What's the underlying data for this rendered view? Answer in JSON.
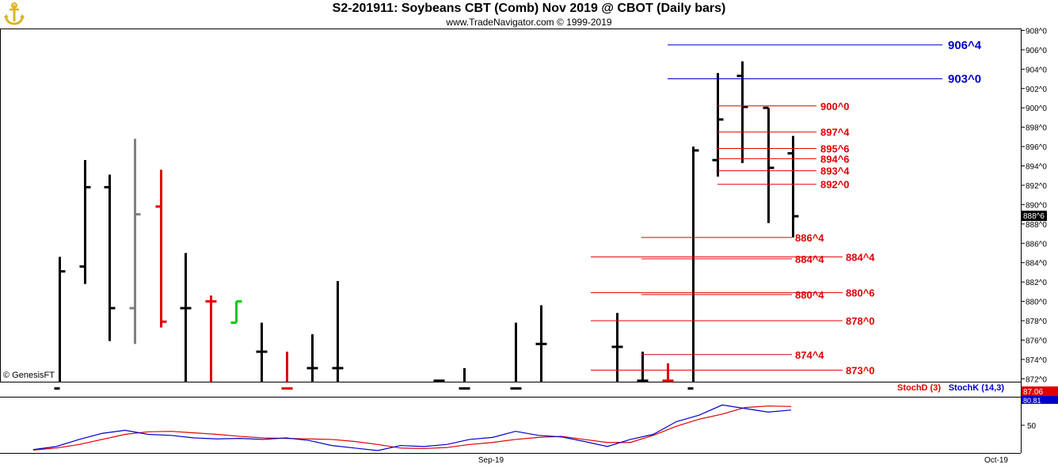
{
  "header": {
    "title": "S2-201911:  Soybeans CBT (Comb) Nov 2019 @ CBOT  (Daily bars)",
    "subtitle": "www.TradeNavigator.com © 1999-2019",
    "logo_icon": "anchor-logo-icon"
  },
  "watermark": "© GenesisFT",
  "colors": {
    "up_bar": "#000000",
    "gray_bar": "#808080",
    "red_bar": "#e00000",
    "green_bar": "#00cc00",
    "blue_level": "#0000cc",
    "red_level": "#e00000",
    "stoch_d": "#e00000",
    "stoch_k": "#0000cc"
  },
  "chart_data": [
    {
      "type": "ohlc",
      "title": "S2-201911:  Soybeans CBT (Comb) Nov 2019 @ CBOT  (Daily bars)",
      "price_axis": {
        "ticks": [
          "872^0",
          "874^0",
          "876^0",
          "878^0",
          "880^0",
          "882^0",
          "884^0",
          "886^0",
          "888^0",
          "890^0",
          "892^0",
          "894^0",
          "896^0",
          "898^0",
          "900^0",
          "902^0",
          "904^0",
          "906^0",
          "908^0"
        ],
        "range": [
          871.7,
          908.2
        ],
        "last_price_label": "888^6"
      },
      "x_axis": {
        "ticks": [
          "Sep-19",
          "Oct-19"
        ]
      },
      "bars": [
        {
          "high": 884.6,
          "low": 871.0,
          "open": 871.0,
          "close": 883.1,
          "color": "up_bar"
        },
        {
          "high": 894.6,
          "low": 881.8,
          "open": 883.6,
          "close": 891.8,
          "color": "up_bar"
        },
        {
          "high": 893.1,
          "low": 875.9,
          "open": 891.8,
          "close": 879.3,
          "color": "up_bar"
        },
        {
          "high": 896.8,
          "low": 875.6,
          "open": 879.3,
          "close": 889.0,
          "color": "gray_bar"
        },
        {
          "high": 893.6,
          "low": 877.3,
          "open": 889.8,
          "close": 877.9,
          "color": "red_bar"
        },
        {
          "high": 885.0,
          "low": 871.0,
          "open": 879.3,
          "close": 879.3,
          "color": "up_bar"
        },
        {
          "high": 880.6,
          "low": 871.0,
          "open": 880.0,
          "close": 880.0,
          "color": "red_bar"
        },
        {
          "high": 880.0,
          "low": 877.8,
          "open": 877.8,
          "close": 880.0,
          "color": "green_bar"
        },
        {
          "high": 877.8,
          "low": 871.0,
          "open": 874.8,
          "close": 874.8,
          "color": "up_bar"
        },
        {
          "high": 874.8,
          "low": 871.0,
          "open": 871.0,
          "close": 871.0,
          "color": "red_bar"
        },
        {
          "high": 876.6,
          "low": 871.0,
          "open": 873.1,
          "close": 873.1,
          "color": "up_bar"
        },
        {
          "high": 882.1,
          "low": 871.0,
          "open": 873.1,
          "close": 873.1,
          "color": "up_bar"
        },
        {
          "high": 871.8,
          "low": 871.0,
          "open": 871.8,
          "close": 871.8,
          "color": "up_bar"
        },
        {
          "high": 873.1,
          "low": 871.0,
          "open": 871.0,
          "close": 871.0,
          "color": "up_bar"
        },
        {
          "high": 877.8,
          "low": 871.0,
          "open": 871.0,
          "close": 871.0,
          "color": "up_bar"
        },
        {
          "high": 879.6,
          "low": 871.0,
          "open": 875.6,
          "close": 875.6,
          "color": "up_bar"
        },
        {
          "high": 878.8,
          "low": 871.0,
          "open": 875.3,
          "close": 875.3,
          "color": "up_bar"
        },
        {
          "high": 874.8,
          "low": 871.8,
          "open": 871.8,
          "close": 871.8,
          "color": "up_bar"
        },
        {
          "high": 873.6,
          "low": 871.8,
          "open": 871.8,
          "close": 871.8,
          "color": "red_bar"
        },
        {
          "high": 896.0,
          "low": 871.0,
          "open": 871.0,
          "close": 895.6,
          "color": "up_bar"
        },
        {
          "high": 903.6,
          "low": 892.9,
          "open": 894.6,
          "close": 898.8,
          "color": "up_bar"
        },
        {
          "high": 904.8,
          "low": 894.3,
          "open": 903.3,
          "close": 900.1,
          "color": "up_bar"
        },
        {
          "high": 900.0,
          "low": 888.1,
          "open": 900.0,
          "close": 893.8,
          "color": "up_bar"
        },
        {
          "high": 897.1,
          "low": 886.6,
          "open": 895.3,
          "close": 888.8,
          "color": "up_bar"
        }
      ],
      "levels": [
        {
          "label": "906^4",
          "value": 906.5,
          "color": "blue_level"
        },
        {
          "label": "903^0",
          "value": 903.0,
          "color": "blue_level"
        },
        {
          "label": "900^0",
          "value": 900.2,
          "color": "red_level"
        },
        {
          "label": "897^4",
          "value": 897.5,
          "color": "red_level"
        },
        {
          "label": "895^6",
          "value": 895.8,
          "color": "red_level"
        },
        {
          "label": "894^6",
          "value": 894.75,
          "color": "red_level"
        },
        {
          "label": "893^4",
          "value": 893.5,
          "color": "red_level"
        },
        {
          "label": "892^0",
          "value": 892.1,
          "color": "red_level"
        },
        {
          "label": "886^4",
          "value": 886.6,
          "color": "red_level"
        },
        {
          "label": "884^4",
          "value": 884.4,
          "color": "red_level"
        },
        {
          "label": "884^4",
          "value": 884.6,
          "color": "red_level"
        },
        {
          "label": "880^4",
          "value": 880.7,
          "color": "red_level"
        },
        {
          "label": "880^6",
          "value": 880.9,
          "color": "red_level"
        },
        {
          "label": "878^0",
          "value": 878.0,
          "color": "red_level"
        },
        {
          "label": "874^4",
          "value": 874.5,
          "color": "red_level"
        },
        {
          "label": "873^0",
          "value": 872.9,
          "color": "red_level"
        }
      ]
    },
    {
      "type": "line",
      "title": "",
      "legend": [
        "StochD (3)",
        "StochK (14,3)"
      ],
      "y_axis": {
        "ticks": [
          "50"
        ],
        "range": [
          0,
          100
        ]
      },
      "last_values": {
        "stoch_d": "87.06",
        "stoch_k": "80.81"
      },
      "series": [
        {
          "name": "StochD (3)",
          "color": "stoch_d",
          "values": [
            1,
            5,
            12,
            22,
            32,
            37,
            38,
            35,
            32,
            28,
            25,
            24,
            23,
            22,
            18,
            12,
            5,
            4,
            6,
            12,
            16,
            22,
            26,
            28,
            22,
            16,
            16,
            30,
            48,
            62,
            72,
            85,
            88,
            87
          ]
        },
        {
          "name": "StochK (14,3)",
          "color": "stoch_k",
          "values": [
            2,
            8,
            22,
            34,
            40,
            32,
            30,
            25,
            23,
            24,
            22,
            25,
            20,
            10,
            5,
            0,
            10,
            8,
            12,
            22,
            26,
            38,
            30,
            27,
            18,
            8,
            22,
            32,
            57,
            70,
            90,
            83,
            76,
            80
          ]
        }
      ]
    }
  ]
}
